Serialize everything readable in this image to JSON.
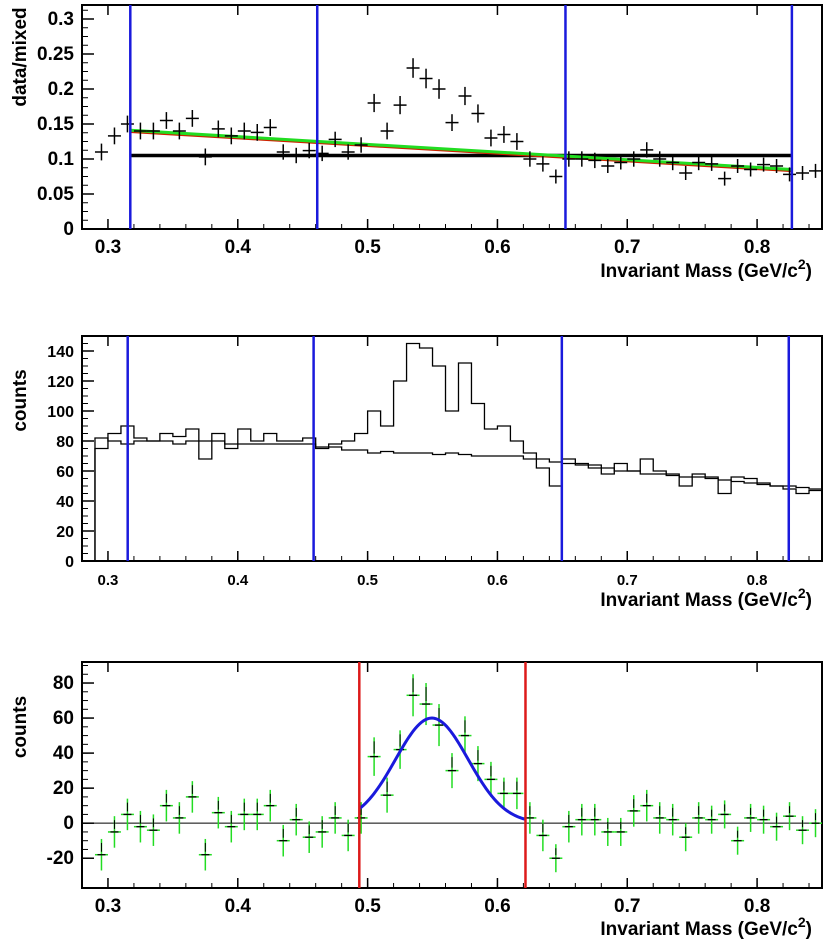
{
  "chart_data": [
    {
      "type": "scatter",
      "title": "",
      "xlabel": "Invariant Mass (GeV/c",
      "xlabel_sup": "2",
      "xlabel_close": ")",
      "ylabel": "data/mixed",
      "xlim": [
        0.28,
        0.85
      ],
      "ylim": [
        0,
        0.32
      ],
      "x_ticks": [
        0.3,
        0.4,
        0.5,
        0.6,
        0.7,
        0.8
      ],
      "x_tick_labels": [
        "0.3",
        "0.4",
        "0.5",
        "0.6",
        "0.7",
        "0.8"
      ],
      "y_ticks": [
        0,
        0.05,
        0.1,
        0.15,
        0.2,
        0.25,
        0.3
      ],
      "y_tick_labels": [
        "0",
        "0.05",
        "0.1",
        "0.15",
        "0.2",
        "0.25",
        "0.3"
      ],
      "bin_width": 0.01,
      "x": [
        0.295,
        0.305,
        0.315,
        0.325,
        0.335,
        0.345,
        0.355,
        0.365,
        0.375,
        0.385,
        0.395,
        0.405,
        0.415,
        0.425,
        0.435,
        0.445,
        0.455,
        0.465,
        0.475,
        0.485,
        0.495,
        0.505,
        0.515,
        0.525,
        0.535,
        0.545,
        0.555,
        0.565,
        0.575,
        0.585,
        0.595,
        0.605,
        0.615,
        0.625,
        0.635,
        0.645,
        0.655,
        0.665,
        0.675,
        0.685,
        0.695,
        0.705,
        0.715,
        0.725,
        0.735,
        0.745,
        0.755,
        0.765,
        0.775,
        0.785,
        0.795,
        0.805,
        0.815,
        0.825,
        0.835,
        0.845
      ],
      "y": [
        0.11,
        0.133,
        0.15,
        0.14,
        0.14,
        0.155,
        0.14,
        0.158,
        0.103,
        0.143,
        0.133,
        0.14,
        0.138,
        0.145,
        0.11,
        0.105,
        0.112,
        0.108,
        0.128,
        0.11,
        0.12,
        0.18,
        0.14,
        0.177,
        0.23,
        0.215,
        0.2,
        0.152,
        0.19,
        0.165,
        0.13,
        0.135,
        0.125,
        0.1,
        0.093,
        0.075,
        0.1,
        0.1,
        0.098,
        0.09,
        0.095,
        0.1,
        0.113,
        0.1,
        0.095,
        0.08,
        0.095,
        0.093,
        0.072,
        0.09,
        0.085,
        0.092,
        0.09,
        0.078,
        0.08,
        0.083
      ],
      "y_err": [
        0.012,
        0.012,
        0.012,
        0.012,
        0.012,
        0.012,
        0.012,
        0.012,
        0.012,
        0.012,
        0.012,
        0.012,
        0.012,
        0.012,
        0.011,
        0.011,
        0.011,
        0.011,
        0.011,
        0.011,
        0.011,
        0.013,
        0.012,
        0.013,
        0.014,
        0.014,
        0.014,
        0.012,
        0.013,
        0.013,
        0.012,
        0.012,
        0.012,
        0.011,
        0.011,
        0.01,
        0.011,
        0.011,
        0.011,
        0.01,
        0.01,
        0.011,
        0.011,
        0.011,
        0.011,
        0.01,
        0.011,
        0.01,
        0.01,
        0.01,
        0.01,
        0.01,
        0.01,
        0.01,
        0.01,
        0.01
      ],
      "vlines": [
        0.3172,
        0.4612,
        0.6524,
        0.8268
      ],
      "vline_color": "#1a1adc",
      "fit_lines": [
        {
          "name": "constant",
          "color": "#000000",
          "x": [
            0.3172,
            0.8268
          ],
          "y": [
            0.105,
            0.105
          ]
        },
        {
          "name": "linear-red",
          "color": "#cc2200",
          "x": [
            0.3172,
            0.8268
          ],
          "y": [
            0.139,
            0.083
          ]
        },
        {
          "name": "linear-green",
          "color": "#22dd22",
          "x": [
            0.3172,
            0.8268
          ],
          "y": [
            0.141,
            0.085
          ]
        }
      ]
    },
    {
      "type": "line",
      "title": "",
      "xlabel": "Invariant Mass (GeV/c",
      "xlabel_sup": "2",
      "xlabel_close": ")",
      "ylabel": "counts",
      "xlim": [
        0.28,
        0.85
      ],
      "ylim": [
        0,
        150
      ],
      "x_ticks": [
        0.3,
        0.4,
        0.5,
        0.6,
        0.7,
        0.8
      ],
      "x_tick_labels": [
        "0.3",
        "0.4",
        "0.5",
        "0.6",
        "0.7",
        "0.8"
      ],
      "y_ticks": [
        0,
        20,
        40,
        60,
        80,
        100,
        120,
        140
      ],
      "y_tick_labels": [
        "0",
        "20",
        "40",
        "60",
        "80",
        "100",
        "120",
        "140"
      ],
      "bin_width": 0.01,
      "x_start": 0.29,
      "series": [
        {
          "name": "data",
          "values": [
            75,
            85,
            90,
            82,
            80,
            85,
            83,
            88,
            68,
            85,
            75,
            88,
            80,
            85,
            80,
            80,
            82,
            75,
            78,
            80,
            85,
            100,
            90,
            120,
            145,
            142,
            130,
            100,
            132,
            105,
            88,
            90,
            80,
            72,
            62,
            50,
            68,
            65,
            64,
            58,
            65,
            60,
            68,
            60,
            58,
            50,
            58,
            56,
            45,
            56,
            55,
            52,
            50,
            48,
            45,
            47
          ]
        },
        {
          "name": "mixed",
          "values": [
            82,
            80,
            78,
            80,
            80,
            80,
            78,
            80,
            80,
            80,
            78,
            78,
            78,
            78,
            78,
            78,
            78,
            76,
            76,
            74,
            74,
            72,
            73,
            72,
            72,
            72,
            71,
            72,
            71,
            70,
            70,
            70,
            70,
            68,
            68,
            66,
            65,
            64,
            62,
            62,
            60,
            60,
            58,
            58,
            57,
            56,
            56,
            55,
            54,
            53,
            52,
            51,
            50,
            50,
            49,
            48
          ]
        }
      ],
      "vlines": [
        0.3152,
        0.4584,
        0.6496,
        0.8244
      ],
      "vline_color": "#1a1adc"
    },
    {
      "type": "scatter",
      "title": "",
      "xlabel": "Invariant Mass (GeV/c",
      "xlabel_sup": "2",
      "xlabel_close": ")",
      "ylabel": "counts",
      "xlim": [
        0.28,
        0.85
      ],
      "ylim": [
        -37,
        92
      ],
      "x_ticks": [
        0.3,
        0.4,
        0.5,
        0.6,
        0.7,
        0.8
      ],
      "x_tick_labels": [
        "0.3",
        "0.4",
        "0.5",
        "0.6",
        "0.7",
        "0.8"
      ],
      "y_ticks": [
        -20,
        0,
        20,
        40,
        60,
        80
      ],
      "y_tick_labels": [
        "-20",
        "0",
        "20",
        "40",
        "60",
        "80"
      ],
      "bin_width": 0.01,
      "point_color": "#22dd22",
      "x": [
        0.295,
        0.305,
        0.315,
        0.325,
        0.335,
        0.345,
        0.355,
        0.365,
        0.375,
        0.385,
        0.395,
        0.405,
        0.415,
        0.425,
        0.435,
        0.445,
        0.455,
        0.465,
        0.475,
        0.485,
        0.495,
        0.505,
        0.515,
        0.525,
        0.535,
        0.545,
        0.555,
        0.565,
        0.575,
        0.585,
        0.595,
        0.605,
        0.615,
        0.625,
        0.635,
        0.645,
        0.655,
        0.665,
        0.675,
        0.685,
        0.695,
        0.705,
        0.715,
        0.725,
        0.735,
        0.745,
        0.755,
        0.765,
        0.775,
        0.785,
        0.795,
        0.805,
        0.815,
        0.825,
        0.835,
        0.845
      ],
      "y": [
        -18,
        -5,
        5,
        -2,
        -4,
        10,
        3,
        15,
        -18,
        6,
        -2,
        5,
        5,
        10,
        -10,
        2,
        -8,
        -5,
        3,
        -7,
        3,
        38,
        16,
        42,
        73,
        68,
        56,
        30,
        50,
        34,
        25,
        17,
        17,
        3,
        -7,
        -20,
        -2,
        2,
        2,
        -5,
        -5,
        7,
        10,
        3,
        2,
        -8,
        3,
        2,
        5,
        -10,
        3,
        2,
        -2,
        4,
        -4,
        0
      ],
      "y_err": [
        9,
        9,
        9,
        9,
        9,
        9,
        9,
        9,
        9,
        9,
        9,
        9,
        9,
        9,
        9,
        9,
        9,
        9,
        9,
        9,
        9,
        11,
        10,
        11,
        12,
        12,
        12,
        10,
        11,
        10,
        10,
        9,
        9,
        9,
        9,
        8,
        9,
        9,
        9,
        8,
        8,
        9,
        9,
        9,
        9,
        8,
        9,
        8,
        8,
        8,
        8,
        8,
        8,
        8,
        8,
        8
      ],
      "vlines": [
        0.4936,
        0.6216
      ],
      "vline_color": "#dd1a1a",
      "zero_line": 0,
      "fit_curve": {
        "name": "gaussian",
        "color": "#1a1adc",
        "x_range": [
          0.4936,
          0.6216
        ],
        "amplitude": 60,
        "mean": 0.5495,
        "sigma": 0.028
      }
    }
  ]
}
